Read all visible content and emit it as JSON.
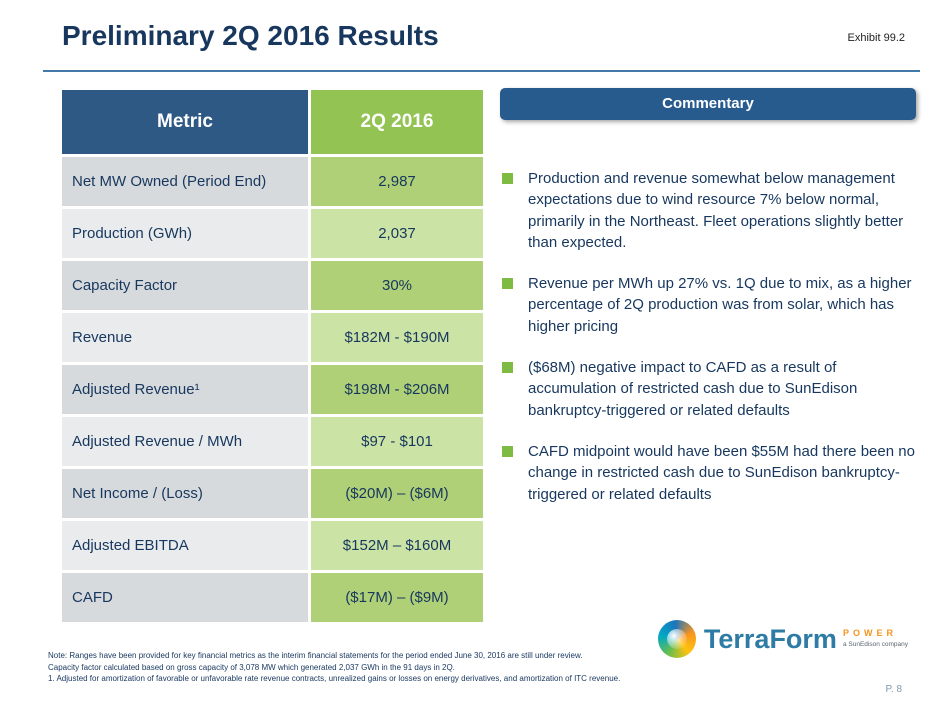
{
  "slide": {
    "title": "Preliminary 2Q 2016 Results",
    "exhibit": "Exhibit 99.2",
    "page_number": "P. 8"
  },
  "table": {
    "headers": {
      "metric": "Metric",
      "value": "2Q 2016"
    },
    "rows": [
      {
        "metric": "Net MW Owned (Period End)",
        "value": "2,987"
      },
      {
        "metric": "Production (GWh)",
        "value": "2,037"
      },
      {
        "metric": "Capacity Factor",
        "value": "30%"
      },
      {
        "metric": "Revenue",
        "value": "$182M - $190M"
      },
      {
        "metric": "Adjusted Revenue¹",
        "value": "$198M - $206M"
      },
      {
        "metric": "Adjusted Revenue / MWh",
        "value": "$97 - $101"
      },
      {
        "metric": "Net Income / (Loss)",
        "value": "($20M) – ($6M)"
      },
      {
        "metric": "Adjusted EBITDA",
        "value": "$152M – $160M"
      },
      {
        "metric": "CAFD",
        "value": "($17M) – ($9M)"
      }
    ]
  },
  "commentary": {
    "title": "Commentary",
    "bullets": [
      "Production and revenue somewhat below management expectations due to wind resource 7% below normal, primarily in the Northeast. Fleet operations slightly better than expected.",
      "Revenue per MWh up 27% vs. 1Q due to mix, as a higher percentage of 2Q production was from solar, which has higher pricing",
      "($68M) negative impact to CAFD as a result of accumulation of restricted cash due to SunEdison bankruptcy-triggered or related defaults",
      "CAFD midpoint would have been $55M had there been no change in restricted cash due to SunEdison bankruptcy-triggered or related defaults"
    ]
  },
  "footnotes": [
    "Note: Ranges have been provided for key financial metrics as the interim financial statements for the period ended June 30, 2016 are still under review.",
    "Capacity factor calculated based on gross capacity of 3,078 MW which generated 2,037 GWh in the 91 days in 2Q.",
    "1. Adjusted for amortization of favorable or unfavorable rate revenue contracts, unrealized gains or losses on energy derivatives, and amortization of ITC revenue."
  ],
  "logo": {
    "brand": "TerraForm",
    "power": "POWER",
    "tagline": "a SunEdison company"
  },
  "colors": {
    "title_blue": "#17375E",
    "header_blue": "#2E5984",
    "header_green": "#92C353",
    "row_green_dark": "#AFD077",
    "row_green_light": "#CCE3A6",
    "row_gray_dark": "#D7DADD",
    "row_gray_light": "#E9EBED",
    "accent_rule": "#4279A6",
    "bullet_green": "#7FBA42",
    "commentary_blue": "#275B8E",
    "logo_teal": "#2E7CA5",
    "logo_orange": "#F7941E"
  }
}
